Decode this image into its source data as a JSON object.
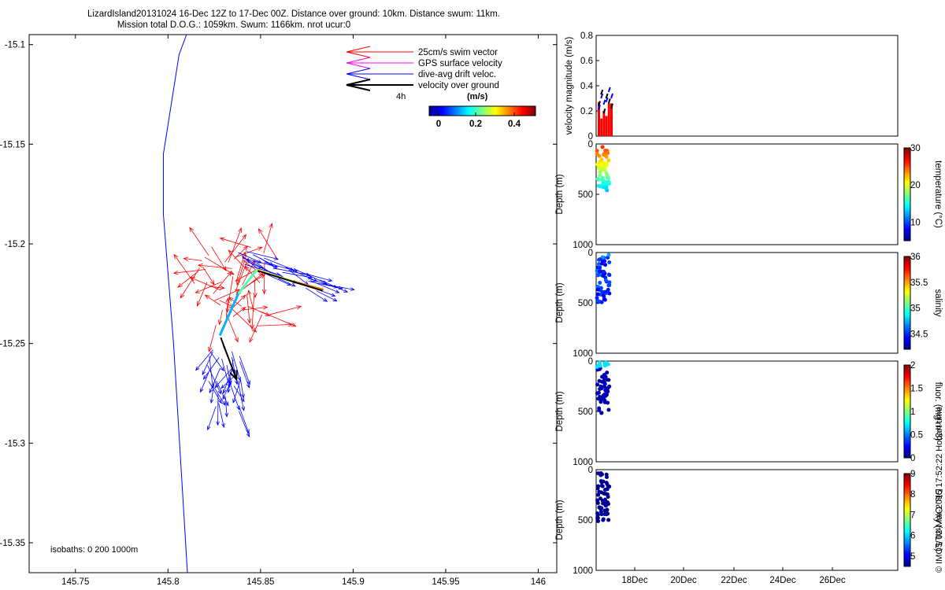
{
  "title": {
    "line1": "LizardIsland20131024 16-Dec 12Z to 17-Dec 00Z. Distance over ground: 10km. Distance swum: 11km.",
    "line2": "Mission total D.O.G.: 1059km. Swum: 1166km. nrot ucur:0"
  },
  "legend": {
    "items": [
      {
        "label": "25cm/s swim vector",
        "color": "#ff0000"
      },
      {
        "label": "GPS surface velocity",
        "color": "#ff00ff"
      },
      {
        "label": "dive-avg drift veloc.",
        "color": "#0000ff"
      },
      {
        "label": "velocity over ground",
        "color": "#000000"
      }
    ],
    "duration_label": "4h",
    "colorbar_unit": "(m/s)",
    "colorbar_ticks": [
      "0",
      "0.2",
      "0.4"
    ]
  },
  "isobaths_label": "isobaths: 0   200  1000m",
  "footer_credit": "© IMOS 02-Mar-2015 17:52:22 Hobart time",
  "chart_data": [
    {
      "type": "line",
      "subplot": "map",
      "title": "",
      "xlabel": "",
      "ylabel": "",
      "xlim": [
        145.725,
        146.01
      ],
      "ylim": [
        -15.365,
        -15.095
      ],
      "xticks": [
        145.75,
        145.8,
        145.85,
        145.9,
        145.95,
        146
      ],
      "xtick_labels": [
        "145.75",
        "145.8",
        "145.85",
        "145.9",
        "145.95",
        "146"
      ],
      "yticks": [
        -15.1,
        -15.15,
        -15.2,
        -15.25,
        -15.3,
        -15.35
      ],
      "ytick_labels": [
        "-15.1",
        "-15.15",
        "-15.2",
        "-15.25",
        "-15.3",
        "-15.35"
      ],
      "series": [
        {
          "name": "isobath 0m",
          "x": [
            145.81,
            145.806,
            145.7975,
            145.7975,
            145.803,
            145.8105
          ],
          "y": [
            -15.095,
            -15.105,
            -15.155,
            -15.185,
            -15.25,
            -15.365
          ]
        },
        {
          "name": "velocity over ground",
          "x": [
            145.8285,
            145.837,
            145.8485,
            145.8835
          ],
          "y": [
            -15.247,
            -15.268,
            -15.2135,
            -15.2235
          ]
        },
        {
          "name": "glider track",
          "x": [
            145.828,
            145.838,
            145.848,
            145.868,
            145.884
          ],
          "y": [
            -15.246,
            -15.225,
            -15.213,
            -15.219,
            -15.223
          ]
        }
      ]
    },
    {
      "type": "bar",
      "subplot": "velocity",
      "ylabel": "velocity magnitude (m/s)",
      "ylim": [
        0,
        0.8
      ],
      "yticks": [
        "0",
        "0.2",
        "0.4",
        "0.6",
        "0.8"
      ],
      "series": [
        {
          "name": "swim",
          "color": "#ff0000",
          "values": [
            0.27,
            0.14,
            0.2,
            0.16,
            0.26,
            0.26
          ]
        },
        {
          "name": "drift",
          "color": "#0000ff",
          "values": [
            0.21,
            0.3,
            0.25,
            0.27,
            0.35,
            0.3
          ]
        },
        {
          "name": "ground",
          "color": "#000000",
          "values": [
            0.24,
            0.33,
            0.18,
            0.3,
            0.26,
            0.22
          ]
        }
      ]
    },
    {
      "type": "scatter",
      "subplot": "temperature",
      "ylabel": "Depth (m)",
      "ylim": [
        1000,
        0
      ],
      "yticks": [
        "0",
        "500",
        "1000"
      ],
      "colorbar_label": "temperature (°C)",
      "colorbar_ticks": [
        "10",
        "20",
        "30"
      ],
      "colorbar_range": [
        5,
        30
      ]
    },
    {
      "type": "scatter",
      "subplot": "salinity",
      "ylabel": "Depth (m)",
      "ylim": [
        1000,
        0
      ],
      "yticks": [
        "0",
        "500",
        "1000"
      ],
      "colorbar_label": "salinity",
      "colorbar_ticks": [
        "34.5",
        "35",
        "35.5",
        "36"
      ],
      "colorbar_range": [
        34.2,
        36
      ]
    },
    {
      "type": "scatter",
      "subplot": "fluorescence",
      "ylabel": "Depth (m)",
      "ylim": [
        1000,
        0
      ],
      "yticks": [
        "0",
        "500",
        "1000"
      ],
      "colorbar_label": "fluor. (mg m-3)",
      "colorbar_ticks": [
        "0",
        "0.5",
        "1",
        "1.5",
        "2"
      ],
      "colorbar_range": [
        0,
        2
      ]
    },
    {
      "type": "scatter",
      "subplot": "oxygen",
      "ylabel": "Depth (m)",
      "ylim": [
        1000,
        0
      ],
      "yticks": [
        "0",
        "500",
        "1000"
      ],
      "colorbar_label": "Dis. Oxy (mL/L)",
      "colorbar_ticks": [
        "5",
        "6",
        "7",
        "8",
        "9"
      ],
      "colorbar_range": [
        4.5,
        9
      ],
      "xtick_labels": [
        "18Dec",
        "20Dec",
        "22Dec",
        "24Dec",
        "26Dec"
      ]
    }
  ]
}
